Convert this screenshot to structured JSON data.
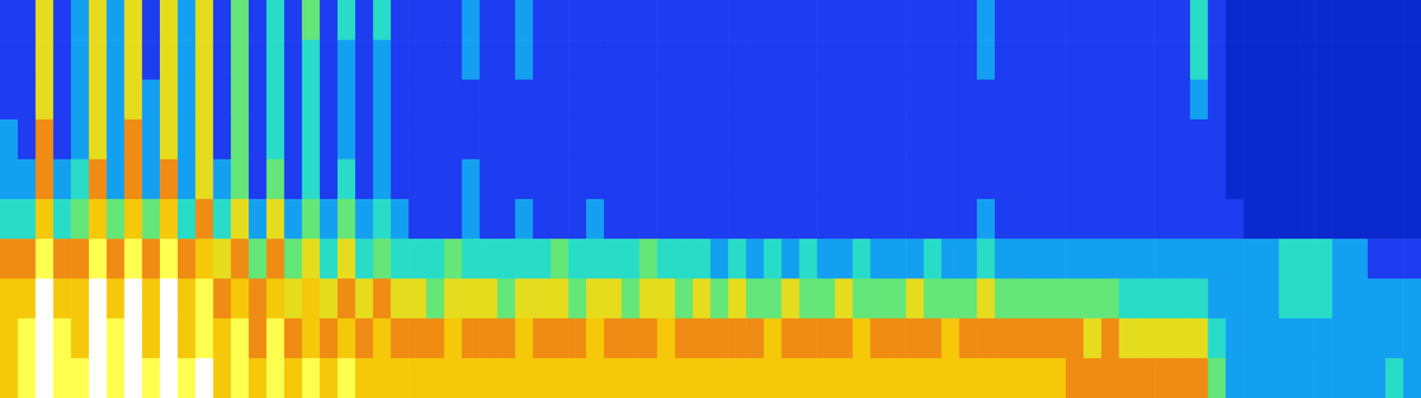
{
  "chart_data": {
    "type": "heatmap",
    "tick_labels": false,
    "grid": false,
    "color_range": [
      0,
      10
    ],
    "color_scale": [
      "#000a8c",
      "#0a2acf",
      "#1e3cf0",
      "#14a0f0",
      "#28dcc8",
      "#64e678",
      "#e6dc1e",
      "#f08c14",
      "#f5c80a",
      "#ffff50",
      "#ffffff"
    ],
    "cells": [
      [
        2,
        2,
        6,
        2,
        3,
        6,
        3,
        6,
        2,
        6,
        3,
        6,
        2,
        5,
        2,
        4,
        2,
        5,
        2,
        4,
        2,
        4,
        2,
        2,
        2,
        2,
        3,
        2,
        2,
        3,
        2,
        2,
        2,
        2,
        2,
        2,
        2,
        2,
        2,
        2,
        2,
        2,
        2,
        2,
        2,
        2,
        2,
        2,
        2,
        2,
        2,
        2,
        2,
        2,
        2,
        3,
        2,
        2,
        2,
        2,
        2,
        2,
        2,
        2,
        2,
        2,
        2,
        4,
        2,
        1,
        1,
        1,
        1,
        1,
        1,
        1,
        1,
        1,
        1,
        1
      ],
      [
        2,
        2,
        6,
        2,
        3,
        6,
        3,
        6,
        2,
        6,
        3,
        6,
        2,
        5,
        2,
        4,
        2,
        4,
        2,
        3,
        2,
        3,
        2,
        2,
        2,
        2,
        3,
        2,
        2,
        3,
        2,
        2,
        2,
        2,
        2,
        2,
        2,
        2,
        2,
        2,
        2,
        2,
        2,
        2,
        2,
        2,
        2,
        2,
        2,
        2,
        2,
        2,
        2,
        2,
        2,
        3,
        2,
        2,
        2,
        2,
        2,
        2,
        2,
        2,
        2,
        2,
        2,
        4,
        2,
        1,
        1,
        1,
        1,
        1,
        1,
        1,
        1,
        1,
        1,
        1
      ],
      [
        2,
        2,
        6,
        2,
        3,
        6,
        3,
        6,
        3,
        6,
        3,
        6,
        2,
        5,
        2,
        4,
        2,
        4,
        2,
        3,
        2,
        3,
        2,
        2,
        2,
        2,
        2,
        2,
        2,
        2,
        2,
        2,
        2,
        2,
        2,
        2,
        2,
        2,
        2,
        2,
        2,
        2,
        2,
        2,
        2,
        2,
        2,
        2,
        2,
        2,
        2,
        2,
        2,
        2,
        2,
        2,
        2,
        2,
        2,
        2,
        2,
        2,
        2,
        2,
        2,
        2,
        2,
        3,
        2,
        1,
        1,
        1,
        1,
        1,
        1,
        1,
        1,
        1,
        1,
        1
      ],
      [
        3,
        2,
        7,
        2,
        3,
        6,
        3,
        7,
        3,
        6,
        3,
        6,
        2,
        5,
        2,
        4,
        2,
        4,
        2,
        3,
        2,
        3,
        2,
        2,
        2,
        2,
        2,
        2,
        2,
        2,
        2,
        2,
        2,
        2,
        2,
        2,
        2,
        2,
        2,
        2,
        2,
        2,
        2,
        2,
        2,
        2,
        2,
        2,
        2,
        2,
        2,
        2,
        2,
        2,
        2,
        2,
        2,
        2,
        2,
        2,
        2,
        2,
        2,
        2,
        2,
        2,
        2,
        2,
        2,
        1,
        1,
        1,
        1,
        1,
        1,
        1,
        1,
        1,
        1,
        1
      ],
      [
        3,
        3,
        7,
        3,
        4,
        7,
        3,
        7,
        3,
        7,
        3,
        6,
        3,
        5,
        2,
        5,
        2,
        4,
        2,
        4,
        2,
        3,
        2,
        2,
        2,
        2,
        3,
        2,
        2,
        2,
        2,
        2,
        2,
        2,
        2,
        2,
        2,
        2,
        2,
        2,
        2,
        2,
        2,
        2,
        2,
        2,
        2,
        2,
        2,
        2,
        2,
        2,
        2,
        2,
        2,
        2,
        2,
        2,
        2,
        2,
        2,
        2,
        2,
        2,
        2,
        2,
        2,
        2,
        2,
        1,
        1,
        1,
        1,
        1,
        1,
        1,
        1,
        1,
        1,
        1
      ],
      [
        4,
        4,
        8,
        4,
        5,
        8,
        5,
        8,
        5,
        8,
        4,
        7,
        4,
        6,
        3,
        6,
        3,
        5,
        3,
        5,
        3,
        4,
        3,
        2,
        2,
        2,
        3,
        2,
        2,
        3,
        2,
        2,
        2,
        3,
        2,
        2,
        2,
        2,
        2,
        2,
        2,
        2,
        2,
        2,
        2,
        2,
        2,
        2,
        2,
        2,
        2,
        2,
        2,
        2,
        2,
        3,
        2,
        2,
        2,
        2,
        2,
        2,
        2,
        2,
        2,
        2,
        2,
        2,
        2,
        2,
        1,
        1,
        1,
        1,
        1,
        1,
        1,
        1,
        1,
        1
      ],
      [
        7,
        7,
        9,
        7,
        7,
        9,
        7,
        9,
        7,
        9,
        7,
        8,
        6,
        7,
        5,
        7,
        5,
        6,
        4,
        6,
        4,
        5,
        4,
        4,
        4,
        5,
        4,
        4,
        4,
        4,
        4,
        5,
        4,
        4,
        4,
        4,
        5,
        4,
        4,
        4,
        3,
        4,
        3,
        4,
        3,
        4,
        3,
        3,
        4,
        3,
        3,
        3,
        4,
        3,
        3,
        4,
        3,
        3,
        3,
        3,
        3,
        3,
        3,
        3,
        3,
        3,
        3,
        3,
        3,
        3,
        3,
        3,
        4,
        4,
        4,
        3,
        3,
        2,
        2,
        2
      ],
      [
        8,
        8,
        10,
        8,
        8,
        10,
        8,
        10,
        8,
        10,
        8,
        9,
        7,
        8,
        7,
        8,
        6,
        8,
        6,
        7,
        6,
        7,
        6,
        6,
        5,
        6,
        6,
        6,
        5,
        6,
        6,
        6,
        5,
        6,
        6,
        5,
        6,
        6,
        5,
        6,
        5,
        6,
        5,
        5,
        6,
        5,
        5,
        6,
        5,
        5,
        5,
        6,
        5,
        5,
        5,
        6,
        5,
        5,
        5,
        5,
        5,
        5,
        5,
        4,
        4,
        4,
        4,
        4,
        3,
        3,
        3,
        3,
        4,
        4,
        4,
        3,
        3,
        3,
        3,
        3
      ],
      [
        8,
        9,
        10,
        9,
        8,
        10,
        9,
        10,
        8,
        10,
        8,
        9,
        8,
        9,
        7,
        9,
        7,
        8,
        7,
        8,
        7,
        8,
        7,
        7,
        7,
        8,
        7,
        7,
        7,
        8,
        7,
        7,
        7,
        8,
        7,
        7,
        7,
        8,
        7,
        7,
        7,
        7,
        7,
        8,
        7,
        7,
        7,
        7,
        8,
        7,
        7,
        7,
        7,
        8,
        7,
        7,
        7,
        7,
        7,
        7,
        7,
        6,
        7,
        6,
        6,
        6,
        6,
        6,
        4,
        3,
        3,
        3,
        3,
        3,
        3,
        3,
        3,
        3,
        3,
        3
      ],
      [
        8,
        9,
        10,
        9,
        9,
        10,
        9,
        10,
        9,
        10,
        9,
        10,
        8,
        9,
        8,
        9,
        8,
        9,
        8,
        9,
        8,
        8,
        8,
        8,
        8,
        8,
        8,
        8,
        8,
        8,
        8,
        8,
        8,
        8,
        8,
        8,
        8,
        8,
        8,
        8,
        8,
        8,
        8,
        8,
        8,
        8,
        8,
        8,
        8,
        8,
        8,
        8,
        8,
        8,
        8,
        8,
        8,
        8,
        8,
        8,
        7,
        7,
        7,
        7,
        7,
        7,
        7,
        7,
        5,
        3,
        3,
        3,
        3,
        3,
        3,
        3,
        3,
        3,
        4,
        3
      ]
    ]
  }
}
